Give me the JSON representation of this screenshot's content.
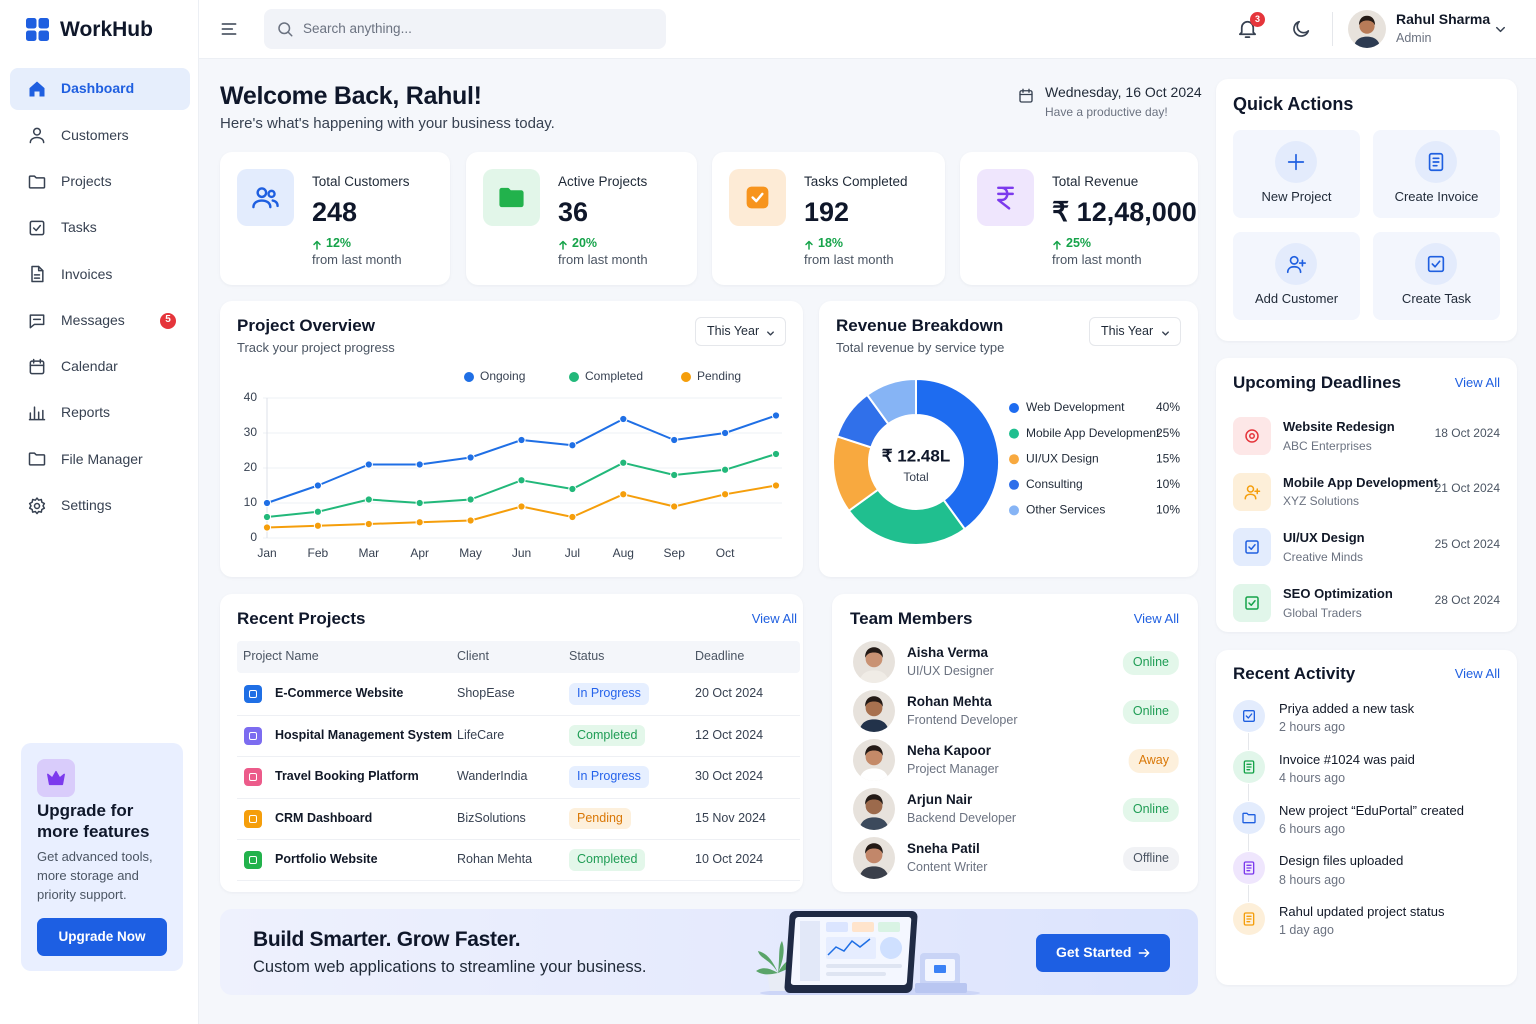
{
  "sidebar": {
    "brand": "WorkHub",
    "nav": [
      {
        "label": "Dashboard"
      },
      {
        "label": "Customers"
      },
      {
        "label": "Projects"
      },
      {
        "label": "Tasks"
      },
      {
        "label": "Invoices"
      },
      {
        "label": "Messages",
        "badge": 5
      },
      {
        "label": "Calendar"
      },
      {
        "label": "Reports"
      },
      {
        "label": "File Manager"
      },
      {
        "label": "Settings"
      }
    ],
    "upgrade": {
      "title": "Upgrade for more features",
      "text": "Get advanced tools, more storage and priority support.",
      "button": "Upgrade Now"
    }
  },
  "header": {
    "search_placeholder": "Search anything...",
    "notifications": 3,
    "user_name": "Rahul Sharma",
    "user_role": "Admin"
  },
  "welcome": {
    "title": "Welcome Back, Rahul!",
    "subtitle": "Here's what's happening with your business today.",
    "date": "Wednesday, 16 Oct 2024",
    "date_note": "Have a productive day!"
  },
  "stats": [
    {
      "label": "Total Customers",
      "value": 248,
      "change": "12%",
      "note": "from last month"
    },
    {
      "label": "Active Projects",
      "value": 36,
      "change": "20%",
      "note": "from last month"
    },
    {
      "label": "Tasks Completed",
      "value": 192,
      "change": "18%",
      "note": "from last month"
    },
    {
      "label": "Total Revenue",
      "value": "₹ 12,48,000",
      "change": "25%",
      "note": "from last month"
    }
  ],
  "chart_data": [
    {
      "type": "line",
      "title": "Project Overview",
      "subtitle": "Track your project progress",
      "period": "This Year",
      "categories": [
        "Jan",
        "Feb",
        "Mar",
        "Apr",
        "May",
        "Jun",
        "Jul",
        "Aug",
        "Sep",
        "Oct",
        null
      ],
      "series": [
        {
          "name": "Ongoing",
          "color": "#1f6fe5",
          "values": [
            10,
            15,
            21,
            21,
            23,
            28,
            26.5,
            34,
            28,
            30,
            35
          ]
        },
        {
          "name": "Completed",
          "color": "#22b87a",
          "values": [
            6,
            7.5,
            11,
            10,
            11,
            16.5,
            14,
            21.5,
            18,
            19.5,
            24
          ]
        },
        {
          "name": "Pending",
          "color": "#f59e0b",
          "values": [
            3,
            3.5,
            4,
            4.5,
            5,
            9,
            6,
            12.5,
            9,
            12.5,
            15
          ]
        }
      ],
      "ylim": [
        0,
        40
      ],
      "yticks": [
        0,
        10,
        20,
        30,
        40
      ],
      "grid": true
    },
    {
      "type": "pie",
      "title": "Revenue Breakdown",
      "subtitle": "Total revenue by service type",
      "period": "This Year",
      "center_value": "₹ 12.48L",
      "center_label": "Total",
      "categories": [
        "Web Development",
        "Mobile App Development",
        "UI/UX Design",
        "Consulting",
        "Other Services"
      ],
      "values": [
        40,
        25,
        15,
        10,
        10
      ],
      "value_labels": [
        "40%",
        "25%",
        "15%",
        "10%",
        "10%"
      ],
      "colors": [
        "#1e6cf0",
        "#20bf8f",
        "#f8a93f",
        "#3070ea",
        "#86b4f5"
      ]
    }
  ],
  "quick_actions": {
    "title": "Quick Actions",
    "items": [
      "New Project",
      "Create Invoice",
      "Add Customer",
      "Create Task"
    ]
  },
  "deadlines": {
    "title": "Upcoming Deadlines",
    "link": "View All",
    "items": [
      {
        "name": "Website Redesign",
        "client": "ABC Enterprises",
        "date": "18 Oct 2024"
      },
      {
        "name": "Mobile App Development",
        "client": "XYZ Solutions",
        "date": "21 Oct 2024"
      },
      {
        "name": "UI/UX Design",
        "client": "Creative Minds",
        "date": "25 Oct 2024"
      },
      {
        "name": "SEO Optimization",
        "client": "Global Traders",
        "date": "28 Oct 2024"
      }
    ]
  },
  "recent_projects": {
    "title": "Recent Projects",
    "link": "View All",
    "columns": [
      "Project Name",
      "Client",
      "Status",
      "Deadline"
    ],
    "rows": [
      [
        "E-Commerce Website",
        "ShopEase",
        "In Progress",
        "20 Oct 2024"
      ],
      [
        "Hospital Management System",
        "LifeCare",
        "Completed",
        "12 Oct 2024"
      ],
      [
        "Travel Booking Platform",
        "WanderIndia",
        "In Progress",
        "30 Oct 2024"
      ],
      [
        "CRM Dashboard",
        "BizSolutions",
        "Pending",
        "15 Nov 2024"
      ],
      [
        "Portfolio Website",
        "Rohan Mehta",
        "Completed",
        "10 Oct 2024"
      ]
    ]
  },
  "team": {
    "title": "Team Members",
    "link": "View All",
    "members": [
      {
        "name": "Aisha Verma",
        "role": "UI/UX Designer",
        "status": "Online"
      },
      {
        "name": "Rohan Mehta",
        "role": "Frontend Developer",
        "status": "Online"
      },
      {
        "name": "Neha Kapoor",
        "role": "Project Manager",
        "status": "Away"
      },
      {
        "name": "Arjun Nair",
        "role": "Backend Developer",
        "status": "Online"
      },
      {
        "name": "Sneha Patil",
        "role": "Content Writer",
        "status": "Offline"
      }
    ]
  },
  "activity": {
    "title": "Recent Activity",
    "link": "View All",
    "items": [
      {
        "text": "Priya added a new task",
        "time": "2 hours ago"
      },
      {
        "text": "Invoice #1024 was paid",
        "time": "4 hours ago"
      },
      {
        "text": "New project “EduPortal” created",
        "time": "6 hours ago"
      },
      {
        "text": "Design files uploaded",
        "time": "8 hours ago"
      },
      {
        "text": "Rahul updated project status",
        "time": "1 day ago"
      }
    ]
  },
  "banner": {
    "title": "Build Smarter. Grow Faster.",
    "text": "Custom web applications to streamline your business.",
    "button": "Get Started"
  }
}
